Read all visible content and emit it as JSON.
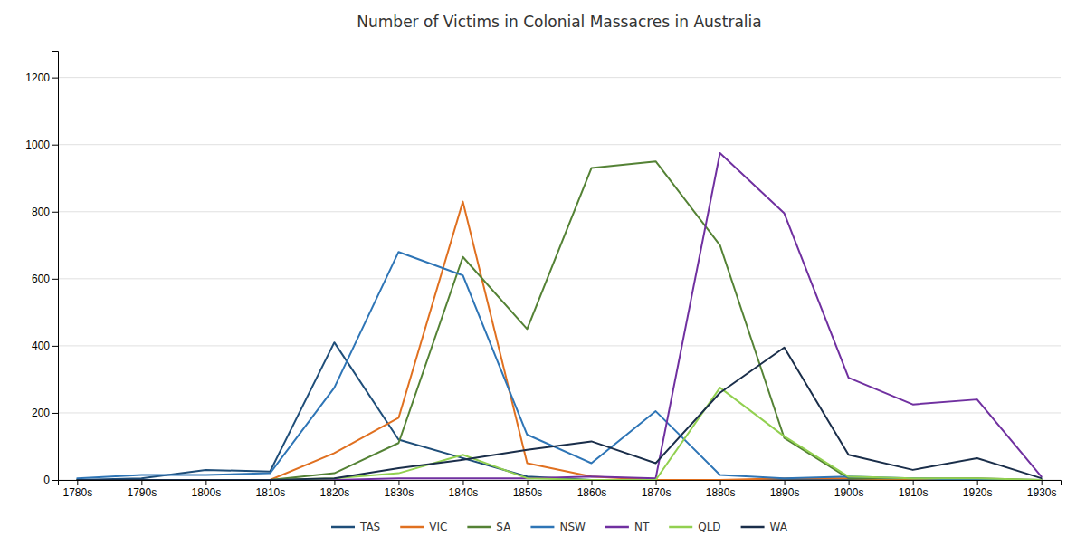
{
  "chart_data": {
    "type": "line",
    "title": "Number of Victims in Colonial Massacres in Australia",
    "categories": [
      "1780s",
      "1790s",
      "1800s",
      "1810s",
      "1820s",
      "1830s",
      "1840s",
      "1850s",
      "1860s",
      "1870s",
      "1880s",
      "1890s",
      "1900s",
      "1910s",
      "1920s",
      "1930s"
    ],
    "series": [
      {
        "name": "TAS",
        "color": "#1f4e79",
        "values": [
          0,
          5,
          30,
          25,
          410,
          120,
          65,
          10,
          0,
          0,
          0,
          0,
          0,
          0,
          0,
          0
        ]
      },
      {
        "name": "VIC",
        "color": "#e07020",
        "values": [
          0,
          0,
          0,
          0,
          80,
          185,
          830,
          50,
          10,
          0,
          0,
          5,
          5,
          0,
          0,
          0
        ]
      },
      {
        "name": "SA",
        "color": "#548235",
        "values": [
          0,
          0,
          0,
          0,
          20,
          110,
          665,
          450,
          930,
          950,
          700,
          125,
          5,
          5,
          5,
          0
        ]
      },
      {
        "name": "NSW",
        "color": "#2e75b6",
        "values": [
          5,
          15,
          15,
          20,
          275,
          680,
          610,
          135,
          50,
          205,
          15,
          5,
          10,
          5,
          0,
          0
        ]
      },
      {
        "name": "NT",
        "color": "#7030a0",
        "values": [
          0,
          0,
          0,
          0,
          0,
          5,
          5,
          5,
          10,
          5,
          975,
          795,
          305,
          225,
          240,
          10
        ]
      },
      {
        "name": "QLD",
        "color": "#92d050",
        "values": [
          0,
          0,
          0,
          0,
          5,
          20,
          75,
          5,
          0,
          0,
          275,
          130,
          10,
          5,
          5,
          0
        ]
      },
      {
        "name": "WA",
        "color": "#1a2e4a",
        "values": [
          0,
          0,
          0,
          0,
          5,
          35,
          60,
          90,
          115,
          50,
          260,
          395,
          75,
          30,
          65,
          5
        ]
      }
    ],
    "ylim": [
      0,
      1280
    ],
    "yticks": [
      0,
      200,
      400,
      600,
      800,
      1000,
      1200
    ],
    "grid": true,
    "legend": "bottom"
  }
}
